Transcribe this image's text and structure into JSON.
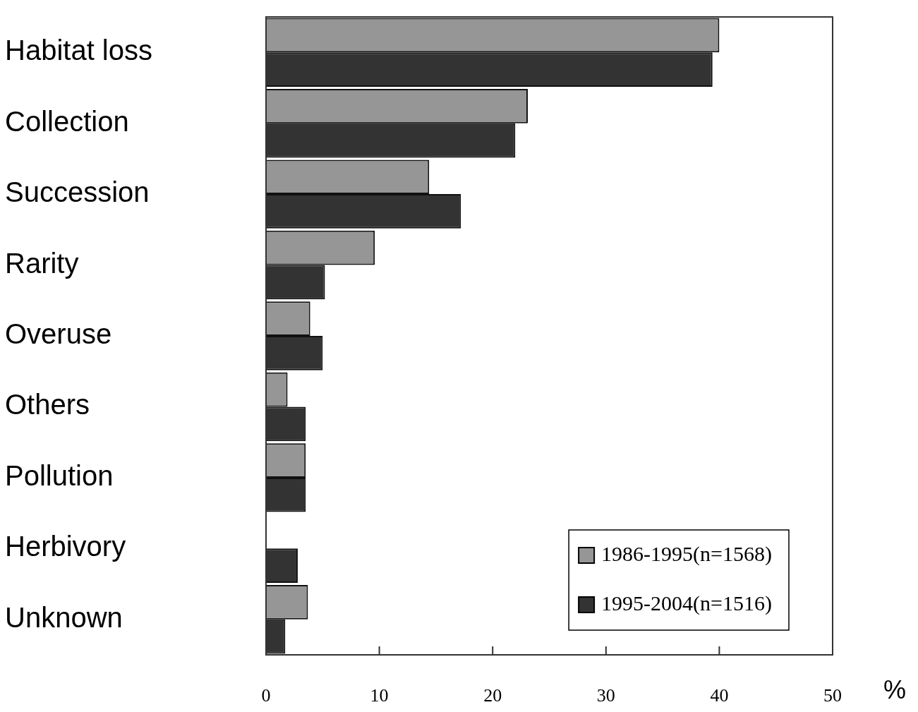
{
  "chart_data": {
    "type": "bar",
    "orientation": "horizontal",
    "xlabel": "%",
    "categories": [
      "Habitat loss",
      "Collection",
      "Succession",
      "Rarity",
      "Overuse",
      "Others",
      "Pollution",
      "Herbivory",
      "Unknown"
    ],
    "series": [
      {
        "name": "1986-1995(n=1568)",
        "color": "#969696",
        "values": [
          40.0,
          23.1,
          14.4,
          9.6,
          3.9,
          1.9,
          3.5,
          null,
          3.7
        ]
      },
      {
        "name": "1995-2004(n=1516)",
        "color": "#333333",
        "values": [
          39.4,
          22.0,
          17.2,
          5.2,
          5.0,
          3.5,
          3.5,
          2.8,
          1.7
        ]
      }
    ],
    "xlim": [
      0,
      50
    ],
    "xticks": [
      0,
      10,
      20,
      30,
      40,
      50
    ],
    "grid": false,
    "legend": "bottom right"
  }
}
